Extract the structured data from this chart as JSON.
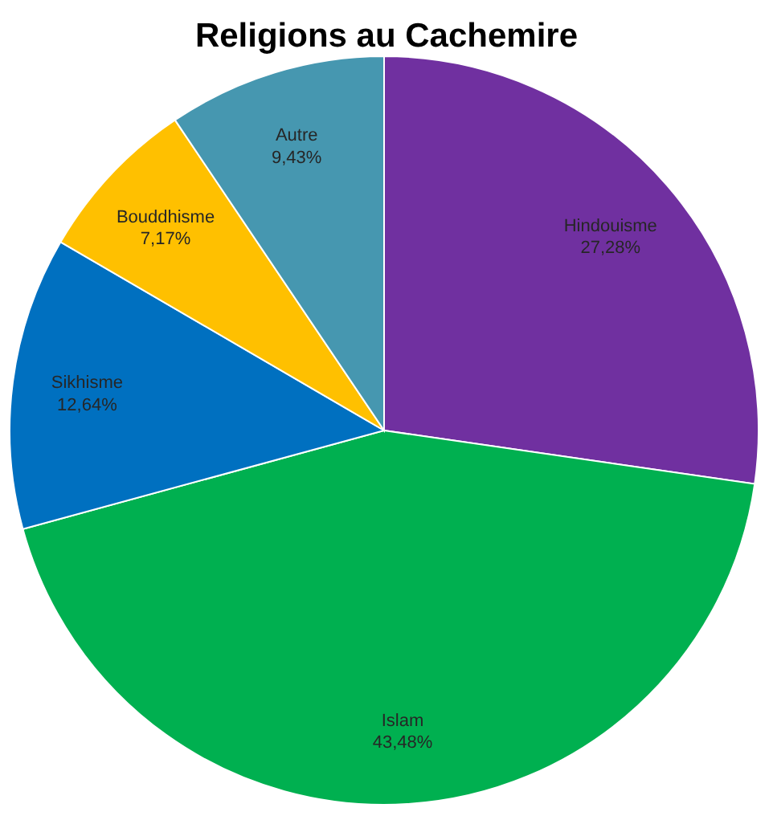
{
  "chart_data": {
    "type": "pie",
    "title": "Religions au Cachemire",
    "categories": [
      "Hindouisme",
      "Islam",
      "Sikhisme",
      "Bouddhisme",
      "Autre"
    ],
    "values": [
      27.28,
      43.48,
      12.64,
      7.17,
      9.43
    ],
    "colors": [
      "#7030a0",
      "#00b050",
      "#0070c0",
      "#ffc000",
      "#4697b0"
    ],
    "value_labels": [
      "27,28%",
      "43,48%",
      "12,64%",
      "7,17%",
      "9,43%"
    ]
  }
}
